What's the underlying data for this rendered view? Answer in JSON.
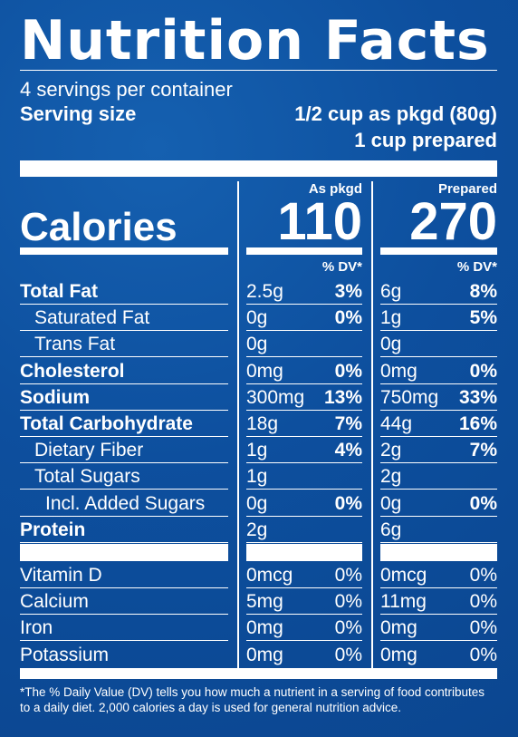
{
  "title": "Nutrition Facts",
  "servings": "4 servings per container",
  "serving_size_label": "Serving size",
  "serving_size_value": "1/2 cup as pkgd (80g)",
  "serving_size_value2": "1 cup prepared",
  "col1_header": "As pkgd",
  "col2_header": "Prepared",
  "calories_label": "Calories",
  "calories_col1": "110",
  "calories_col2": "270",
  "dv_header": "% DV*",
  "nutrients": [
    {
      "name": "Total Fat",
      "amt1": "2.5g",
      "dv1": "3%",
      "amt2": "6g",
      "dv2": "8%"
    },
    {
      "name": "Saturated Fat",
      "amt1": "0g",
      "dv1": "0%",
      "amt2": "1g",
      "dv2": "5%"
    },
    {
      "name": "Trans Fat",
      "amt1": "0g",
      "dv1": "",
      "amt2": "0g",
      "dv2": ""
    },
    {
      "name": "Cholesterol",
      "amt1": "0mg",
      "dv1": "0%",
      "amt2": "0mg",
      "dv2": "0%"
    },
    {
      "name": "Sodium",
      "amt1": "300mg",
      "dv1": "13%",
      "amt2": "750mg",
      "dv2": "33%"
    },
    {
      "name": "Total Carbohydrate",
      "amt1": "18g",
      "dv1": "7%",
      "amt2": "44g",
      "dv2": "16%"
    },
    {
      "name": "Dietary Fiber",
      "amt1": "1g",
      "dv1": "4%",
      "amt2": "2g",
      "dv2": "7%"
    },
    {
      "name": "Total Sugars",
      "amt1": "1g",
      "dv1": "",
      "amt2": "2g",
      "dv2": ""
    },
    {
      "name": "Incl. Added Sugars",
      "amt1": "0g",
      "dv1": "0%",
      "amt2": "0g",
      "dv2": "0%"
    },
    {
      "name": "Protein",
      "amt1": "2g",
      "dv1": "",
      "amt2": "6g",
      "dv2": ""
    }
  ],
  "vitamins": [
    {
      "name": "Vitamin D",
      "amt1": "0mcg",
      "dv1": "0%",
      "amt2": "0mcg",
      "dv2": "0%"
    },
    {
      "name": "Calcium",
      "amt1": "5mg",
      "dv1": "0%",
      "amt2": "11mg",
      "dv2": "0%"
    },
    {
      "name": "Iron",
      "amt1": "0mg",
      "dv1": "0%",
      "amt2": "0mg",
      "dv2": "0%"
    },
    {
      "name": "Potassium",
      "amt1": "0mg",
      "dv1": "0%",
      "amt2": "0mg",
      "dv2": "0%"
    }
  ],
  "footnote_line1": "*The % Daily Value (DV) tells you how much a nutrient in a serving of food contributes",
  "footnote_line2": "to a daily diet. 2,000 calories a day is used for general nutrition advice."
}
